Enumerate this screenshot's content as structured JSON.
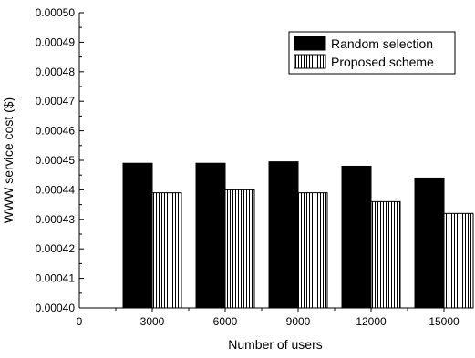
{
  "chart_data": {
    "type": "bar",
    "xlabel": "Number of users",
    "ylabel": "WWW service cost ($)",
    "categories": [
      "3000",
      "6000",
      "9000",
      "12000",
      "15000"
    ],
    "x_zero_label": "0",
    "ylim": [
      0.0004,
      0.0005
    ],
    "yticks": [
      "0.00040",
      "0.00041",
      "0.00042",
      "0.00043",
      "0.00044",
      "0.00045",
      "0.00046",
      "0.00047",
      "0.00048",
      "0.00049",
      "0.00050"
    ],
    "series": [
      {
        "name": "Random selection",
        "values": [
          0.000449,
          0.000449,
          0.0004495,
          0.000448,
          0.000444
        ],
        "fill": "solid",
        "color": "#000000"
      },
      {
        "name": "Proposed scheme",
        "values": [
          0.000439,
          0.00044,
          0.000439,
          0.000436,
          0.000432
        ],
        "fill": "vertical-hatch",
        "color": "#000000"
      }
    ],
    "legend_position": "top-right",
    "grid": false
  }
}
